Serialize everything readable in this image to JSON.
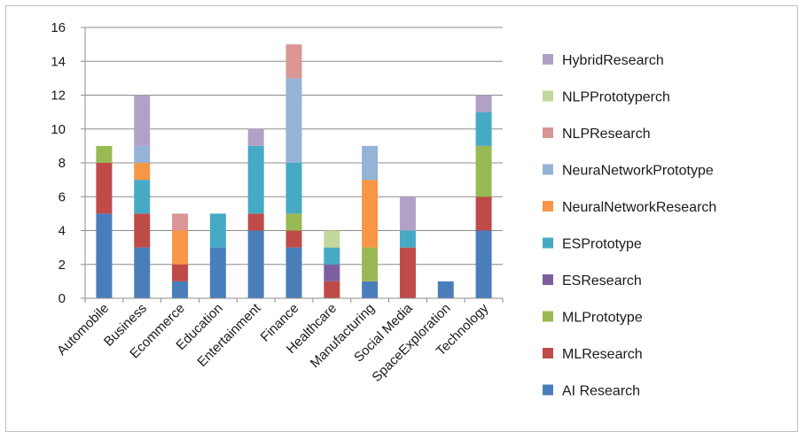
{
  "chart_data": {
    "type": "bar",
    "stacked": true,
    "title": "",
    "xlabel": "",
    "ylabel": "",
    "ylim": [
      0,
      16
    ],
    "yticks": [
      0,
      2,
      4,
      6,
      8,
      10,
      12,
      14,
      16
    ],
    "grid": true,
    "legend_position": "right",
    "categories": [
      "Automobile",
      "Business",
      "Ecommerce",
      "Education",
      "Entertainment",
      "Finance",
      "Healthcare",
      "Manufacturing",
      "Social Media",
      "SpaceExploration",
      "Technology"
    ],
    "series": [
      {
        "name": "AI Research",
        "color": "#4a7ebb",
        "values": [
          5,
          3,
          1,
          3,
          4,
          3,
          0,
          1,
          0,
          1,
          4
        ]
      },
      {
        "name": "MLResearch",
        "color": "#be4b48",
        "values": [
          3,
          2,
          1,
          0,
          1,
          1,
          1,
          0,
          3,
          0,
          2
        ]
      },
      {
        "name": "MLPrototype",
        "color": "#98b954",
        "values": [
          1,
          0,
          0,
          0,
          0,
          1,
          0,
          2,
          0,
          0,
          3
        ]
      },
      {
        "name": "ESResearch",
        "color": "#7d5fa0",
        "values": [
          0,
          0,
          0,
          0,
          0,
          0,
          1,
          0,
          0,
          0,
          0
        ]
      },
      {
        "name": "ESPrototype",
        "color": "#46aac5",
        "values": [
          0,
          2,
          0,
          2,
          4,
          3,
          1,
          0,
          1,
          0,
          2
        ]
      },
      {
        "name": "NeuralNetworkResearch",
        "color": "#f79646",
        "values": [
          0,
          1,
          2,
          0,
          0,
          0,
          0,
          4,
          0,
          0,
          0
        ]
      },
      {
        "name": "NeuraNetworkPrototype",
        "color": "#95b3d7",
        "values": [
          0,
          1,
          0,
          0,
          0,
          5,
          0,
          2,
          0,
          0,
          0
        ]
      },
      {
        "name": "NLPResearch",
        "color": "#d99694",
        "values": [
          0,
          0,
          1,
          0,
          0,
          2,
          0,
          0,
          0,
          0,
          0
        ]
      },
      {
        "name": "NLPPrototyperch",
        "color": "#c3d69b",
        "values": [
          0,
          0,
          0,
          0,
          0,
          0,
          1,
          0,
          0,
          0,
          0
        ]
      },
      {
        "name": "HybridResearch",
        "color": "#b2a1c7",
        "values": [
          0,
          3,
          0,
          0,
          1,
          0,
          0,
          0,
          2,
          0,
          1
        ]
      }
    ]
  }
}
